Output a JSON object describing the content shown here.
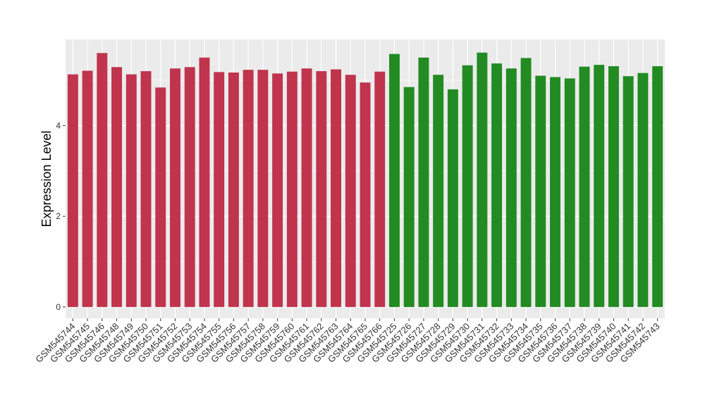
{
  "chart_data": {
    "type": "bar",
    "title": "",
    "xlabel": "",
    "ylabel": "Expression Level",
    "ylim": [
      -0.25,
      5.9
    ],
    "y_ticks": [
      0,
      2,
      4
    ],
    "y_tick_labels": [
      "0",
      "2",
      "4"
    ],
    "grid": true,
    "legend": "none",
    "colors": {
      "group_a": "#c0344d",
      "group_b": "#228b22",
      "panel": "#ebebeb",
      "gridline": "#ffffff",
      "axis_text": "#333333"
    },
    "categories": [
      "GSM545744",
      "GSM545745",
      "GSM545746",
      "GSM545748",
      "GSM545749",
      "GSM545750",
      "GSM545751",
      "GSM545752",
      "GSM545753",
      "GSM545754",
      "GSM545755",
      "GSM545756",
      "GSM545757",
      "GSM545758",
      "GSM545759",
      "GSM545760",
      "GSM545761",
      "GSM545762",
      "GSM545763",
      "GSM545764",
      "GSM545765",
      "GSM545766",
      "GSM545725",
      "GSM545726",
      "GSM545727",
      "GSM545728",
      "GSM545729",
      "GSM545730",
      "GSM545731",
      "GSM545732",
      "GSM545733",
      "GSM545734",
      "GSM545735",
      "GSM545736",
      "GSM545737",
      "GSM545738",
      "GSM545739",
      "GSM545740",
      "GSM545741",
      "GSM545742",
      "GSM545743"
    ],
    "values": [
      5.13,
      5.21,
      5.6,
      5.29,
      5.13,
      5.2,
      4.84,
      5.26,
      5.29,
      5.5,
      5.18,
      5.17,
      5.23,
      5.23,
      5.15,
      5.19,
      5.26,
      5.2,
      5.24,
      5.12,
      4.95,
      5.19,
      5.58,
      4.85,
      5.5,
      5.12,
      4.8,
      5.33,
      5.61,
      5.37,
      5.26,
      5.49,
      5.1,
      5.07,
      5.04,
      5.3,
      5.34,
      5.31,
      5.09,
      5.16,
      5.31
    ],
    "groups": [
      "a",
      "a",
      "a",
      "a",
      "a",
      "a",
      "a",
      "a",
      "a",
      "a",
      "a",
      "a",
      "a",
      "a",
      "a",
      "a",
      "a",
      "a",
      "a",
      "a",
      "a",
      "a",
      "b",
      "b",
      "b",
      "b",
      "b",
      "b",
      "b",
      "b",
      "b",
      "b",
      "b",
      "b",
      "b",
      "b",
      "b",
      "b",
      "b",
      "b",
      "b"
    ]
  }
}
